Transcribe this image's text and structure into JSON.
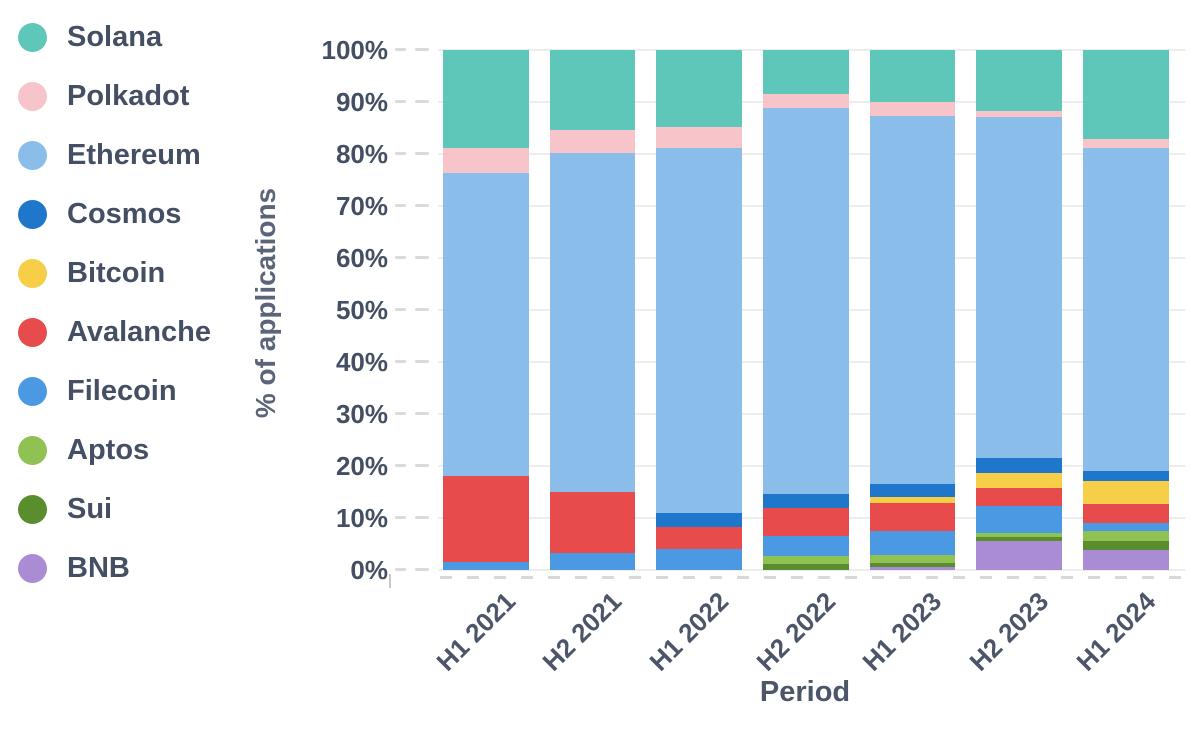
{
  "chart_data": {
    "type": "bar",
    "stacked": true,
    "title": "",
    "xlabel": "Period",
    "ylabel": "% of applications",
    "ylim": [
      0,
      100
    ],
    "ytick_step": 10,
    "grid": true,
    "legend_position": "left",
    "y_tick_labels": [
      "100%",
      "90%",
      "80%",
      "70%",
      "60%",
      "50%",
      "40%",
      "30%",
      "20%",
      "10%",
      "0%"
    ],
    "categories": [
      "H1 2021",
      "H2 2021",
      "H1 2022",
      "H2 2022",
      "H1 2023",
      "H2 2023",
      "H1 2024"
    ],
    "legend_order_top_to_bottom": [
      "Solana",
      "Polkadot",
      "Ethereum",
      "Cosmos",
      "Bitcoin",
      "Avalanche",
      "Filecoin",
      "Aptos",
      "Sui",
      "BNB"
    ],
    "series": [
      {
        "name": "BNB",
        "color": "#aa8cd5",
        "values": [
          0,
          0,
          0,
          0,
          0.5,
          5.6,
          3.8
        ]
      },
      {
        "name": "Sui",
        "color": "#5a8d2e",
        "values": [
          0,
          0,
          0,
          1.2,
          0.8,
          0.7,
          1.8
        ]
      },
      {
        "name": "Aptos",
        "color": "#8fc253",
        "values": [
          0,
          0,
          0,
          1.5,
          1.5,
          0.8,
          1.9
        ]
      },
      {
        "name": "Filecoin",
        "color": "#4b98e3",
        "values": [
          1.5,
          3.3,
          4.0,
          3.8,
          4.7,
          5.2,
          1.5
        ]
      },
      {
        "name": "Avalanche",
        "color": "#e84b4b",
        "values": [
          16.5,
          11.7,
          4.3,
          5.4,
          5.4,
          3.5,
          3.7
        ]
      },
      {
        "name": "Bitcoin",
        "color": "#f6ce47",
        "values": [
          0,
          0,
          0,
          0,
          1.1,
          2.9,
          4.4
        ]
      },
      {
        "name": "Cosmos",
        "color": "#1e77cb",
        "values": [
          0,
          0,
          2.7,
          2.7,
          2.5,
          2.8,
          1.9
        ]
      },
      {
        "name": "Ethereum",
        "color": "#8abde9",
        "values": [
          58.3,
          65.2,
          70.2,
          74.2,
          70.8,
          65.6,
          62.2
        ]
      },
      {
        "name": "Polkadot",
        "color": "#f6c4c9",
        "values": [
          4.9,
          4.4,
          4.0,
          2.7,
          2.7,
          1.2,
          1.7
        ]
      },
      {
        "name": "Solana",
        "color": "#5fc7b9",
        "values": [
          18.8,
          15.4,
          14.8,
          8.5,
          10.0,
          11.7,
          17.1
        ]
      }
    ]
  },
  "colors": {
    "text_dark": "#454f63",
    "text_axis": "#4d5569",
    "gridline": "#ededed",
    "tick": "#dadada",
    "background": "#ffffff"
  }
}
